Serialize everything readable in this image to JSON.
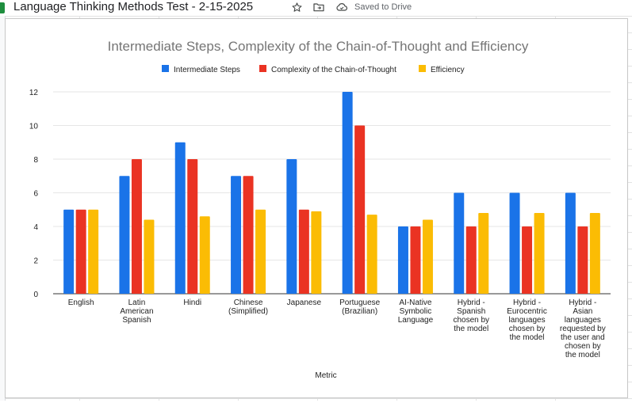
{
  "app": {
    "doc_title": "Language Thinking Methods Test - 2-15-2025",
    "saved_status": "Saved to Drive",
    "icons": [
      "star-icon",
      "move-to-folder-icon",
      "cloud-saved-icon"
    ]
  },
  "colors": {
    "series_blue": "#1a73e8",
    "series_red": "#ea3323",
    "series_yellow": "#fbbc04",
    "gridline": "#e6e6e6",
    "title_text": "#757575",
    "axis_text": "#222222"
  },
  "chart_data": {
    "type": "bar",
    "title": "Intermediate Steps, Complexity of the Chain-of-Thought and Efficiency",
    "xlabel": "Metric",
    "ylabel": "",
    "ylim": [
      0,
      12
    ],
    "yticks": [
      "0",
      "2",
      "4",
      "6",
      "8",
      "10",
      "12"
    ],
    "legend_position": "top",
    "grid": true,
    "categories": [
      [
        "English"
      ],
      [
        "Latin",
        "American",
        "Spanish"
      ],
      [
        "Hindi"
      ],
      [
        "Chinese",
        "(Simplified)"
      ],
      [
        "Japanese"
      ],
      [
        "Portuguese",
        "(Brazilian)"
      ],
      [
        "AI-Native",
        "Symbolic",
        "Language"
      ],
      [
        "Hybrid -",
        "Spanish",
        "chosen by",
        "the model"
      ],
      [
        "Hybrid -",
        "Eurocentric",
        "languages",
        "chosen by",
        "the model"
      ],
      [
        "Hybrid -",
        "Asian",
        "languages",
        "requested by",
        "the user and",
        "chosen by",
        "the model"
      ]
    ],
    "series": [
      {
        "name": "Intermediate Steps",
        "color": "#1a73e8",
        "values": [
          5,
          7,
          9,
          7,
          8,
          12,
          4,
          6,
          6,
          6
        ]
      },
      {
        "name": "Complexity of the Chain-of-Thought",
        "color": "#ea3323",
        "values": [
          5,
          8,
          8,
          7,
          5,
          10,
          4,
          4,
          4,
          4
        ]
      },
      {
        "name": "Efficiency",
        "color": "#fbbc04",
        "values": [
          5,
          4.4,
          4.6,
          5,
          4.9,
          4.7,
          4.4,
          4.8,
          4.8,
          4.8
        ]
      }
    ]
  }
}
